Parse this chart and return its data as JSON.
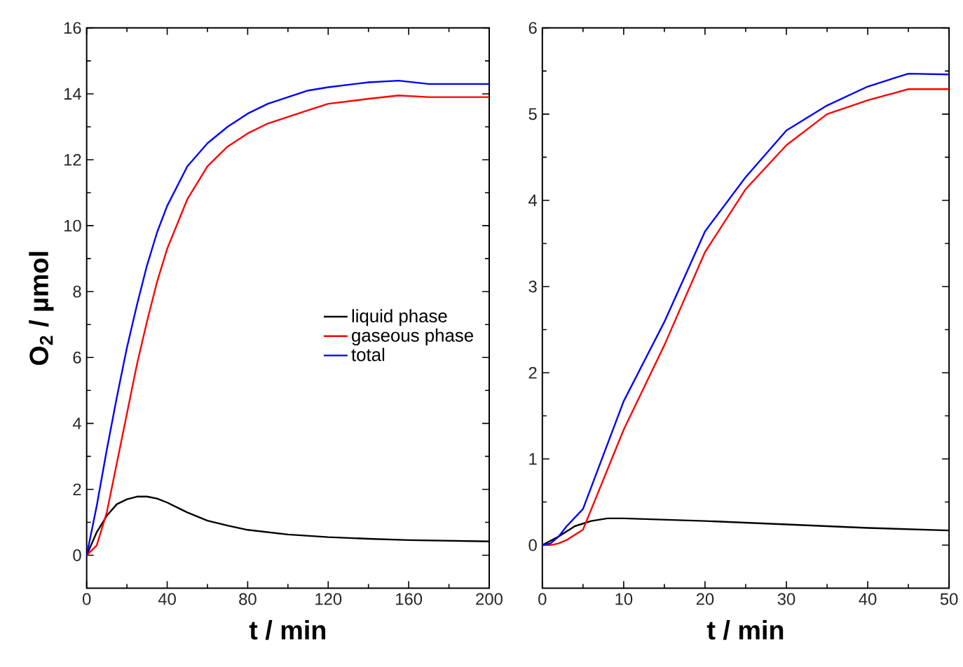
{
  "chart_data": [
    {
      "type": "line",
      "xlabel": "t / min",
      "ylabel": "O$_{2}$ / µmol",
      "xlim": [
        0,
        200
      ],
      "ylim": [
        -1,
        16
      ],
      "xticks": [
        0,
        40,
        80,
        120,
        160,
        200
      ],
      "yticks": [
        0,
        2,
        4,
        6,
        8,
        10,
        12,
        14,
        16
      ],
      "legend": "right",
      "line_style": "solid",
      "marker": "none",
      "series": [
        {
          "name": "liquid phase",
          "color": "#000000",
          "x": [
            0,
            5,
            10,
            15,
            20,
            25,
            30,
            35,
            40,
            50,
            60,
            70,
            80,
            100,
            120,
            140,
            160,
            200
          ],
          "values": [
            0,
            0.7,
            1.2,
            1.55,
            1.7,
            1.78,
            1.78,
            1.72,
            1.6,
            1.3,
            1.05,
            0.9,
            0.77,
            0.63,
            0.55,
            0.5,
            0.46,
            0.42
          ]
        },
        {
          "name": "gaseous phase",
          "color": "#ff0000",
          "x": [
            0,
            5,
            10,
            15,
            20,
            25,
            30,
            35,
            40,
            50,
            60,
            70,
            80,
            90,
            100,
            110,
            120,
            140,
            155,
            170,
            200
          ],
          "values": [
            0,
            0.3,
            1.3,
            2.8,
            4.3,
            5.8,
            7.1,
            8.3,
            9.3,
            10.8,
            11.8,
            12.4,
            12.8,
            13.1,
            13.3,
            13.5,
            13.7,
            13.85,
            13.95,
            13.9,
            13.9
          ]
        },
        {
          "name": "total",
          "color": "#0000ff",
          "x": [
            0,
            5,
            10,
            15,
            20,
            25,
            30,
            35,
            40,
            50,
            60,
            70,
            80,
            90,
            100,
            110,
            120,
            140,
            155,
            170,
            200
          ],
          "values": [
            0,
            1.5,
            3.2,
            4.8,
            6.3,
            7.6,
            8.8,
            9.8,
            10.6,
            11.8,
            12.5,
            13.0,
            13.4,
            13.7,
            13.9,
            14.1,
            14.2,
            14.35,
            14.4,
            14.3,
            14.3
          ]
        }
      ]
    },
    {
      "type": "line",
      "xlabel": "t / min",
      "xlim": [
        0,
        50
      ],
      "ylim": [
        -0.5,
        6
      ],
      "xticks": [
        0,
        10,
        20,
        30,
        40,
        50
      ],
      "yticks": [
        0,
        1,
        2,
        3,
        4,
        5,
        6
      ],
      "legend": false,
      "line_style": "solid",
      "marker": "none",
      "series": [
        {
          "color": "#000000",
          "x": [
            0,
            2,
            4,
            6,
            8,
            10,
            20,
            30,
            40,
            50
          ],
          "values": [
            0,
            0.1,
            0.22,
            0.28,
            0.31,
            0.31,
            0.28,
            0.24,
            0.2,
            0.17
          ]
        },
        {
          "color": "#ff0000",
          "x": [
            0,
            1,
            2,
            3,
            5,
            10,
            15,
            20,
            25,
            30,
            35,
            40,
            45,
            50
          ],
          "values": [
            0,
            0,
            0.02,
            0.06,
            0.18,
            1.34,
            2.32,
            3.4,
            4.13,
            4.64,
            5.0,
            5.16,
            5.29,
            5.29
          ]
        },
        {
          "color": "#0000ff",
          "x": [
            0,
            1,
            2,
            3,
            5,
            10,
            15,
            20,
            25,
            30,
            35,
            40,
            45,
            50
          ],
          "values": [
            0,
            0.02,
            0.1,
            0.22,
            0.42,
            1.67,
            2.59,
            3.64,
            4.27,
            4.81,
            5.1,
            5.32,
            5.47,
            5.46
          ]
        }
      ]
    }
  ]
}
